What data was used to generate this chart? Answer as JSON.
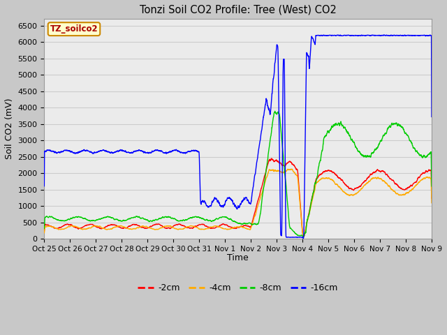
{
  "title": "Tonzi Soil CO2 Profile: Tree (West) CO2",
  "ylabel": "Soil CO2 (mV)",
  "xlabel": "Time",
  "legend_label": "TZ_soilco2",
  "series_labels": [
    "-2cm",
    "-4cm",
    "-8cm",
    "-16cm"
  ],
  "series_colors": [
    "#ff0000",
    "#ffaa00",
    "#00cc00",
    "#0000ff"
  ],
  "ylim": [
    0,
    6700
  ],
  "yticks": [
    0,
    500,
    1000,
    1500,
    2000,
    2500,
    3000,
    3500,
    4000,
    4500,
    5000,
    5500,
    6000,
    6500
  ],
  "xtick_labels": [
    "Oct 25",
    "Oct 26",
    "Oct 27",
    "Oct 28",
    "Oct 29",
    "Oct 30",
    "Oct 31",
    "Nov 1",
    "Nov 2",
    "Nov 3",
    "Nov 4",
    "Nov 5",
    "Nov 6",
    "Nov 7",
    "Nov 8",
    "Nov 9"
  ],
  "grid_color": "#cccccc",
  "plot_bg_color": "#ebebeb",
  "fig_bg_color": "#c8c8c8",
  "legend_box_facecolor": "#ffffcc",
  "legend_box_edgecolor": "#cc8800",
  "line_width": 1.0
}
